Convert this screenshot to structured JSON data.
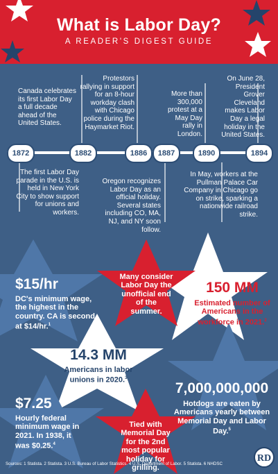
{
  "header": {
    "title": "What is Labor Day?",
    "subtitle": "A READER'S DIGEST GUIDE"
  },
  "timeline": {
    "years": [
      "1872",
      "1882",
      "1886",
      "1887",
      "1890",
      "1894"
    ],
    "events_above": [
      "Canada celebrates its first Labor Day a full decade ahead of the United States.",
      "Protestors rallying in support for an 8-hour workday clash with Chicago police during the Haymarket Riot.",
      "More than 300,000 protest at a May Day rally in London.",
      "On June 28, President Grover Cleveland makes Labor Day a legal holiday in the United States."
    ],
    "events_below": [
      "The first Labor Day parade in the U.S. is held in New York City to show support for unions and workers.",
      "Oregon recognizes Labor Day as an official holiday. Several states including CO, MA, NJ, and NY soon follow.",
      "In May, workers at the Pullman Palace Car Company in Chicago go on strike, sparking a nationwide railroad strike."
    ]
  },
  "facts": {
    "wage_dc": {
      "value": "$15/hr",
      "text": "DC's minimum wage, the highest in the country. CA is second at $14/hr.",
      "ref": "1"
    },
    "unofficial_end": {
      "text": "Many consider Labor Day the unofficial end of the summer."
    },
    "workforce": {
      "value": "150 MM",
      "text": "Estimated number of Americans in the workforce in 2021.",
      "ref": "2"
    },
    "unions": {
      "value": "14.3 MM",
      "text": "Americans in labor unions in 2020.",
      "ref": "3"
    },
    "hotdogs": {
      "value": "7,000,000,000",
      "text": "Hotdogs are eaten by Americans yearly between Memorial Day and Labor Day.",
      "ref": "5"
    },
    "federal_wage": {
      "value": "$7.25",
      "text": "Hourly federal minimum wage in 2021. In 1938, it was $0.25.",
      "ref": "4"
    },
    "grilling": {
      "text": "Tied with Memorial Day for the 2nd most popular holiday for grilling."
    }
  },
  "footer": {
    "sources": "Sources: 1 Statista. 2 Statista. 3 U.S. Bureau of Labor Statistics. 4 U.S. Department of Labor. 5 Statista. 6 NHDSC",
    "logo": "RD"
  },
  "colors": {
    "red": "#d8202f",
    "navy": "#25446b",
    "background": "#3e5f86",
    "light_star": "#4f77a8",
    "white": "#ffffff"
  }
}
